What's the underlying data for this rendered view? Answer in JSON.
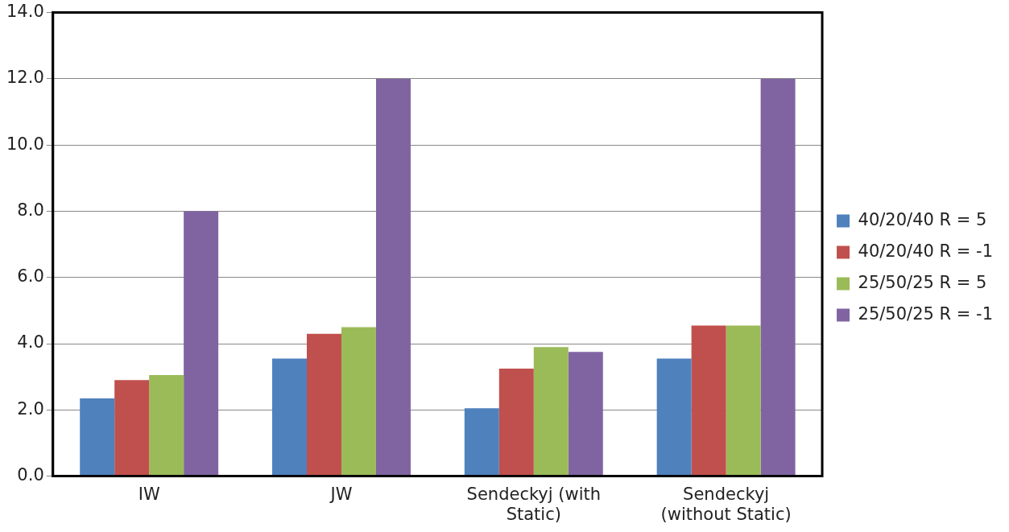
{
  "chart_data": {
    "type": "bar",
    "categories": [
      "IW",
      "JW",
      "Sendeckyj (with Static)",
      "Sendeckyj (without Static)"
    ],
    "series": [
      {
        "name": "40/20/40 R = 5",
        "color": "#4f81bd",
        "values": [
          2.35,
          3.55,
          2.05,
          3.55
        ]
      },
      {
        "name": "40/20/40 R = -1",
        "color": "#c0504d",
        "values": [
          2.9,
          4.3,
          3.25,
          4.55
        ]
      },
      {
        "name": "25/50/25 R = 5",
        "color": "#9bbb59",
        "values": [
          3.05,
          4.5,
          3.9,
          4.55
        ]
      },
      {
        "name": "25/50/25 R = -1",
        "color": "#8064a2",
        "values": [
          8.0,
          12.0,
          3.75,
          12.0
        ]
      }
    ],
    "ylim": [
      0,
      14
    ],
    "yticks": [
      {
        "value": 0,
        "label": "0.0"
      },
      {
        "value": 2,
        "label": "2.0"
      },
      {
        "value": 4,
        "label": "4.0"
      },
      {
        "value": 6,
        "label": "6.0"
      },
      {
        "value": 8,
        "label": "8.0"
      },
      {
        "value": 10,
        "label": "10.0"
      },
      {
        "value": 12,
        "label": "12.0"
      },
      {
        "value": 14,
        "label": "14.0"
      }
    ],
    "grid": "y",
    "legend": "right"
  }
}
